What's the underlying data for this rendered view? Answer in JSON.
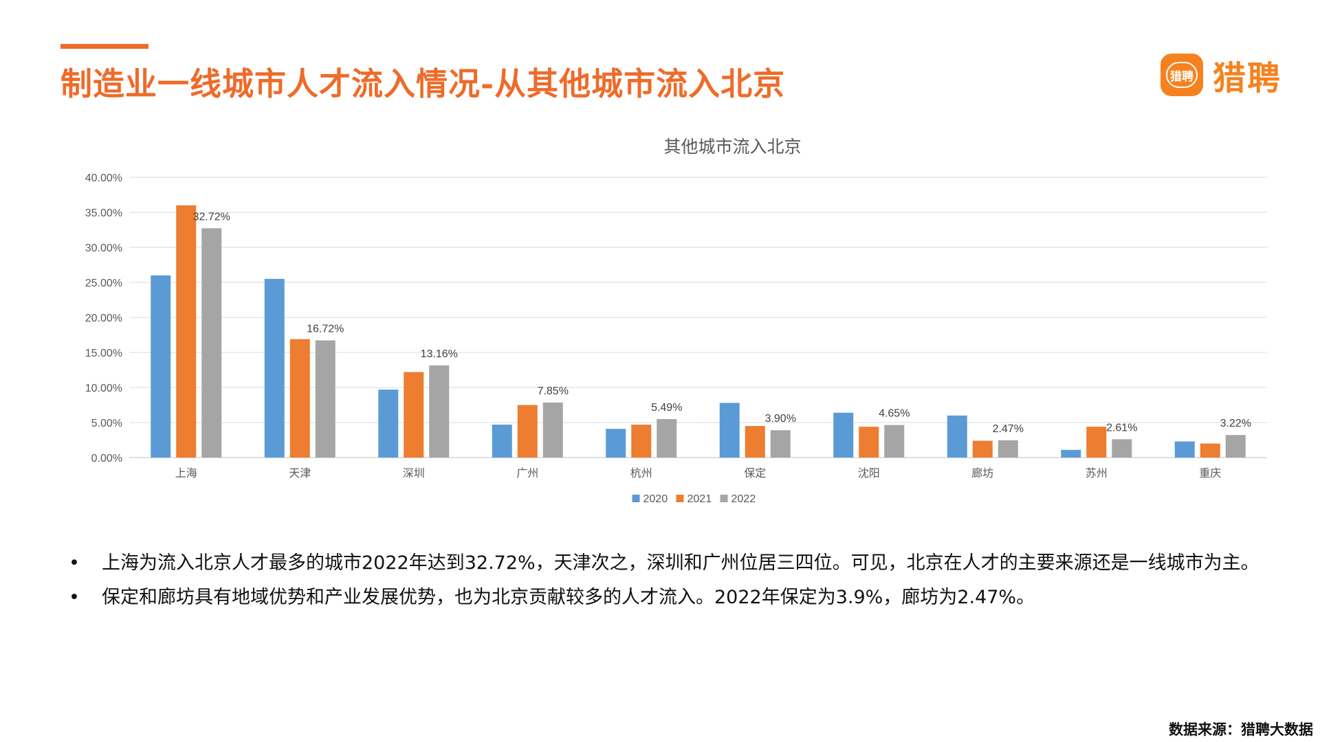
{
  "header": {
    "title": "制造业一线城市人才流入情况-从其他城市流入北京"
  },
  "logo": {
    "badge_text": "猎聘",
    "brand_text": "猎聘",
    "color": "#f5821f"
  },
  "accent_color": "#ee6b2a",
  "chart_data": {
    "type": "bar",
    "title": "其他城市流入北京",
    "xlabel": "",
    "ylabel": "",
    "categories": [
      "上海",
      "天津",
      "深圳",
      "广州",
      "杭州",
      "保定",
      "沈阳",
      "廊坊",
      "苏州",
      "重庆"
    ],
    "series": [
      {
        "name": "2020",
        "color": "#5b9bd5",
        "values": [
          26.0,
          25.5,
          9.7,
          4.7,
          4.1,
          7.8,
          6.4,
          6.0,
          1.1,
          2.3
        ]
      },
      {
        "name": "2021",
        "color": "#ed7d31",
        "values": [
          36.0,
          16.9,
          12.2,
          7.5,
          4.7,
          4.5,
          4.4,
          2.4,
          4.4,
          2.0
        ]
      },
      {
        "name": "2022",
        "color": "#a5a5a5",
        "values": [
          32.72,
          16.72,
          13.16,
          7.85,
          5.49,
          3.9,
          4.65,
          2.47,
          2.61,
          3.22
        ]
      }
    ],
    "data_labels": [
      "32.72%",
      "16.72%",
      "13.16%",
      "7.85%",
      "5.49%",
      "3.90%",
      "4.65%",
      "2.47%",
      "2.61%",
      "3.22%"
    ],
    "y_ticks": [
      "0.00%",
      "5.00%",
      "10.00%",
      "15.00%",
      "20.00%",
      "25.00%",
      "30.00%",
      "35.00%",
      "40.00%"
    ],
    "ylim": [
      0,
      40
    ],
    "grid": true,
    "legend_position": "bottom"
  },
  "bullets": [
    {
      "mark": "•",
      "text": "上海为流入北京人才最多的城市2022年达到32.72%，天津次之，深圳和广州位居三四位。可见，北京在人才的主要来源还是一线城市为主。"
    },
    {
      "mark": "•",
      "text": "保定和廊坊具有地域优势和产业发展优势，也为北京贡献较多的人才流入。2022年保定为3.9%，廊坊为2.47%。"
    }
  ],
  "footer": {
    "source": "数据来源：猎聘大数据"
  }
}
